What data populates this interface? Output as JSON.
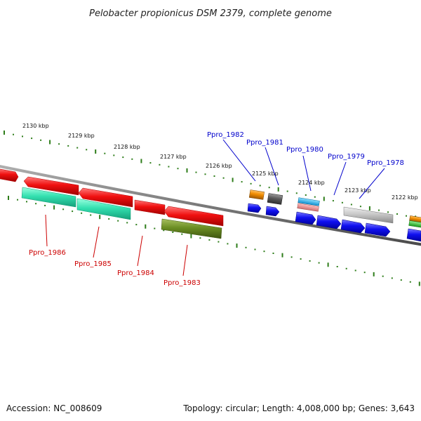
{
  "title": "Pelobacter propionicus DSM 2379, complete genome",
  "footer": {
    "accession": "Accession: NC_008609",
    "summary": "Topology: circular; Length: 4,008,000 bp; Genes: 3,643"
  },
  "colors": {
    "backbone": "#7a7a7a",
    "tick": "#2e7d1a",
    "red_gene": "#f01010",
    "teal_gene": "#33e0b0",
    "olive_gene": "#6b8e23",
    "blue_gene": "#1010f0",
    "grey_gene": "#c8c8c8",
    "dark_grey_gene": "#5a5a5a",
    "orange_gene": "#f08c00",
    "cyan_gene": "#1eb4f0",
    "pink_gene": "#f08c8c",
    "green_gene": "#2ecc2e",
    "label_blue": "#0000cc",
    "label_red": "#cc0000"
  },
  "ticks": [
    {
      "label": "2130 kbp"
    },
    {
      "label": "2129 kbp"
    },
    {
      "label": "2128 kbp"
    },
    {
      "label": "2127 kbp"
    },
    {
      "label": "2126 kbp"
    },
    {
      "label": "2125 kbp"
    },
    {
      "label": "2124 kbp"
    },
    {
      "label": "2123 kbp"
    },
    {
      "label": "2122 kbp"
    }
  ],
  "gene_labels": {
    "above": [
      {
        "text": "Ppro_1982",
        "color": "blue"
      },
      {
        "text": "Ppro_1981",
        "color": "blue"
      },
      {
        "text": "Ppro_1980",
        "color": "blue"
      },
      {
        "text": "Ppro_1979",
        "color": "blue"
      },
      {
        "text": "Ppro_1978",
        "color": "blue"
      }
    ],
    "below": [
      {
        "text": "Ppro_1986",
        "color": "red"
      },
      {
        "text": "Ppro_1985",
        "color": "red"
      },
      {
        "text": "Ppro_1984",
        "color": "red"
      },
      {
        "text": "Ppro_1983",
        "color": "red"
      }
    ]
  }
}
